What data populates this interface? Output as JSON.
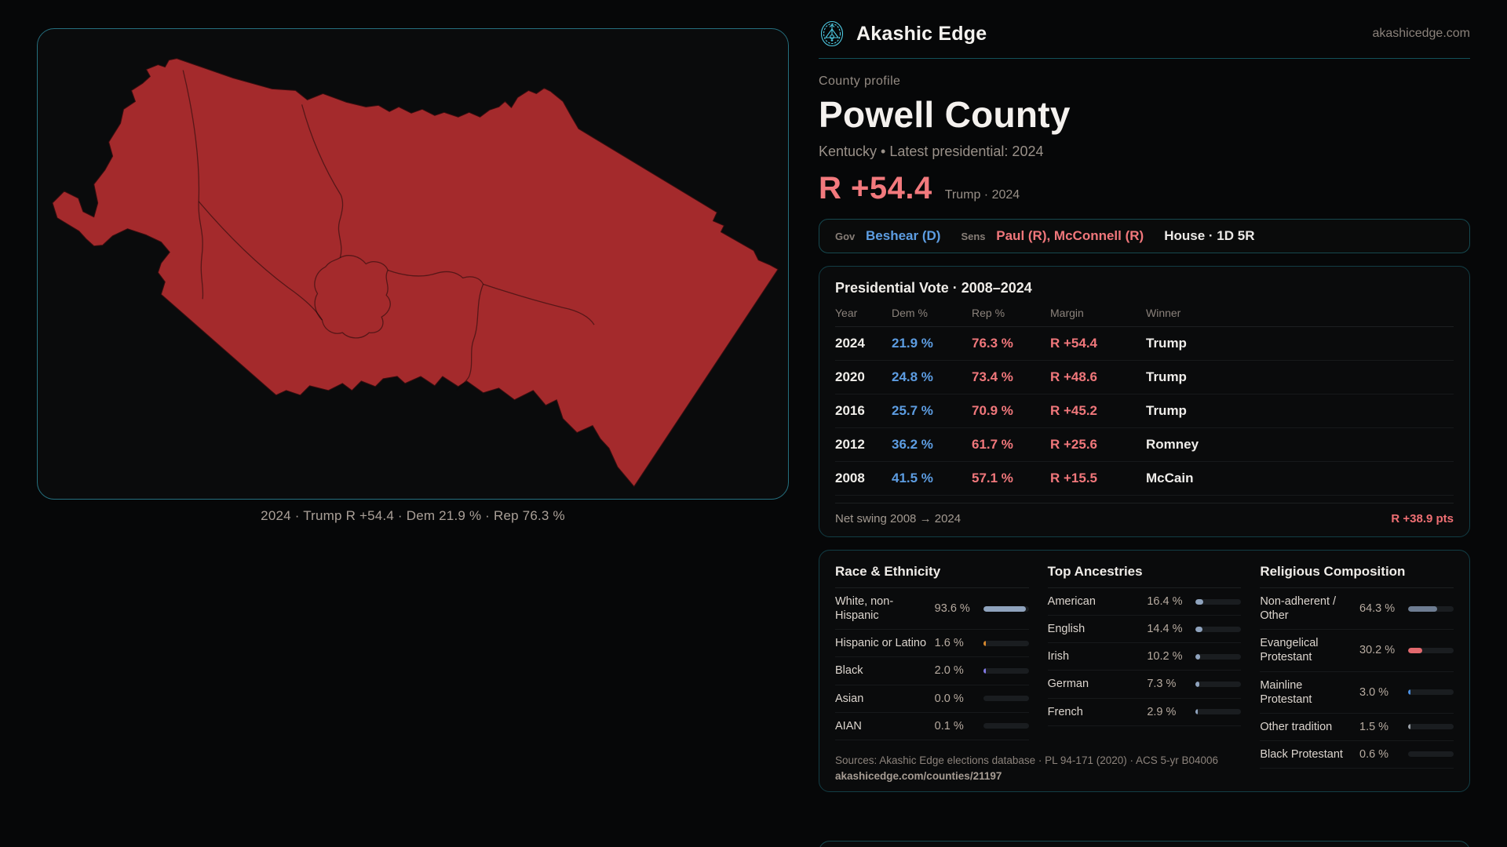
{
  "brand": {
    "name": "Akashic Edge",
    "domain": "akashicedge.com"
  },
  "page": {
    "eyebrow": "County profile",
    "title": "Powell County",
    "subtitle": "Kentucky • Latest presidential: 2024"
  },
  "headline": {
    "margin": "R +54.4",
    "note": "Trump · 2024"
  },
  "officials": {
    "gov_label": "Gov",
    "gov_value": "Beshear (D)",
    "sens_label": "Sens",
    "sens_value": "Paul (R), McConnell (R)",
    "house_value": "House · 1D 5R"
  },
  "vote_table": {
    "title": "Presidential Vote · 2008–2024",
    "columns": [
      "Year",
      "Dem %",
      "Rep %",
      "Margin",
      "Winner"
    ],
    "rows": [
      {
        "year": "2024",
        "dem": "21.9 %",
        "rep": "76.3 %",
        "margin": "R +54.4",
        "winner": "Trump"
      },
      {
        "year": "2020",
        "dem": "24.8 %",
        "rep": "73.4 %",
        "margin": "R +48.6",
        "winner": "Trump"
      },
      {
        "year": "2016",
        "dem": "25.7 %",
        "rep": "70.9 %",
        "margin": "R +45.2",
        "winner": "Trump"
      },
      {
        "year": "2012",
        "dem": "36.2 %",
        "rep": "61.7 %",
        "margin": "R +25.6",
        "winner": "Romney"
      },
      {
        "year": "2008",
        "dem": "41.5 %",
        "rep": "57.1 %",
        "margin": "R +15.5",
        "winner": "McCain"
      }
    ],
    "net_swing_label": "Net swing 2008 → 2024",
    "net_swing_value": "R +38.9 pts"
  },
  "demographics": {
    "race": {
      "title": "Race & Ethnicity",
      "rows": [
        {
          "label": "White, non-Hispanic",
          "value": "93.6 %",
          "pct": 93.6,
          "color": "#8fa3bd"
        },
        {
          "label": "Hispanic or Latino",
          "value": "1.6 %",
          "pct": 1.6,
          "color": "#d8892e"
        },
        {
          "label": "Black",
          "value": "2.0 %",
          "pct": 2.0,
          "color": "#837ae6"
        },
        {
          "label": "Asian",
          "value": "0.0 %",
          "pct": 0.0,
          "color": "#8fa3bd"
        },
        {
          "label": "AIAN",
          "value": "0.1 %",
          "pct": 0.1,
          "color": "#8fa3bd"
        }
      ]
    },
    "ancestry": {
      "title": "Top Ancestries",
      "rows": [
        {
          "label": "American",
          "value": "16.4 %",
          "pct": 16.4,
          "color": "#8fa3bd"
        },
        {
          "label": "English",
          "value": "14.4 %",
          "pct": 14.4,
          "color": "#8fa3bd"
        },
        {
          "label": "Irish",
          "value": "10.2 %",
          "pct": 10.2,
          "color": "#8fa3bd"
        },
        {
          "label": "German",
          "value": "7.3 %",
          "pct": 7.3,
          "color": "#8fa3bd"
        },
        {
          "label": "French",
          "value": "2.9 %",
          "pct": 2.9,
          "color": "#8fa3bd"
        }
      ]
    },
    "religion": {
      "title": "Religious Composition",
      "rows": [
        {
          "label": "Non-adherent / Other",
          "value": "64.3 %",
          "pct": 64.3,
          "color": "#6e7d92"
        },
        {
          "label": "Evangelical Protestant",
          "value": "30.2 %",
          "pct": 30.2,
          "color": "#e2696e"
        },
        {
          "label": "Mainline Protestant",
          "value": "3.0 %",
          "pct": 3.0,
          "color": "#4a8fe0"
        },
        {
          "label": "Other tradition",
          "value": "1.5 %",
          "pct": 1.5,
          "color": "#9aa0a6"
        },
        {
          "label": "Black Protestant",
          "value": "0.6 %",
          "pct": 0.6,
          "color": "#6e7d92"
        }
      ]
    }
  },
  "sources": {
    "line1": "Sources: Akashic Edge elections database · PL 94-171 (2020) · ACS 5-yr B04006",
    "line2": "akashicedge.com/counties/21197"
  },
  "map": {
    "caption": "2024 · Trump R +54.4 · Dem 21.9 % · Rep 76.3 %",
    "fill_color": "#a42a2c",
    "border_color": "#256f7e"
  },
  "colors": {
    "accent_teal": "#2b7d8d",
    "dem_blue": "#5d9de2",
    "rep_red": "#f0777b",
    "logo_cyan": "#4ec9e2"
  }
}
